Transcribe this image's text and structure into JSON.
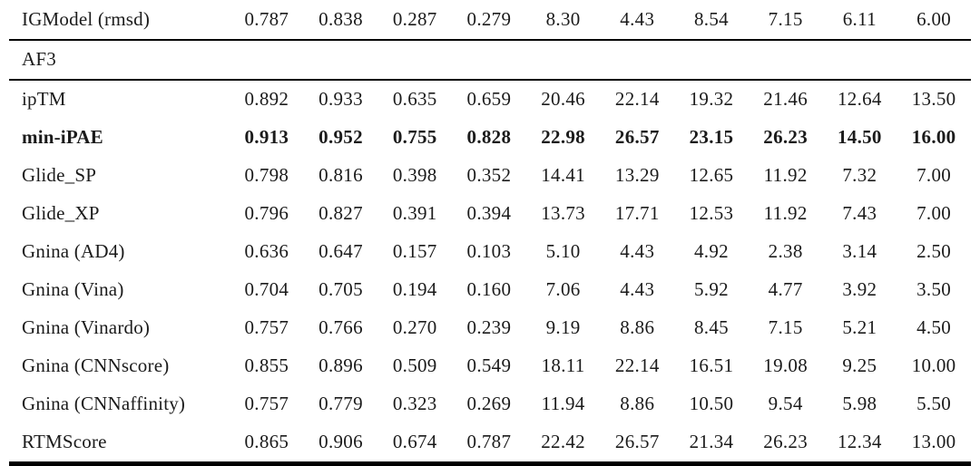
{
  "table": {
    "description_colors": {
      "text": "#1b1b1b",
      "rule": "#000000",
      "background": "#ffffff"
    },
    "rows": [
      {
        "type": "data",
        "label": "IGModel (rmsd)",
        "bold": false,
        "rule_below": "medium",
        "values": [
          "0.787",
          "0.838",
          "0.287",
          "0.279",
          "8.30",
          "4.43",
          "8.54",
          "7.15",
          "6.11",
          "6.00"
        ]
      },
      {
        "type": "section",
        "label": "AF3",
        "rule_below": "thin"
      },
      {
        "type": "data",
        "label": "ipTM",
        "bold": false,
        "values": [
          "0.892",
          "0.933",
          "0.635",
          "0.659",
          "20.46",
          "22.14",
          "19.32",
          "21.46",
          "12.64",
          "13.50"
        ]
      },
      {
        "type": "data",
        "label": "min-iPAE",
        "bold": true,
        "values": [
          "0.913",
          "0.952",
          "0.755",
          "0.828",
          "22.98",
          "26.57",
          "23.15",
          "26.23",
          "14.50",
          "16.00"
        ]
      },
      {
        "type": "data",
        "label": "Glide_SP",
        "bold": false,
        "values": [
          "0.798",
          "0.816",
          "0.398",
          "0.352",
          "14.41",
          "13.29",
          "12.65",
          "11.92",
          "7.32",
          "7.00"
        ]
      },
      {
        "type": "data",
        "label": "Glide_XP",
        "bold": false,
        "values": [
          "0.796",
          "0.827",
          "0.391",
          "0.394",
          "13.73",
          "17.71",
          "12.53",
          "11.92",
          "7.43",
          "7.00"
        ]
      },
      {
        "type": "data",
        "label": "Gnina (AD4)",
        "bold": false,
        "values": [
          "0.636",
          "0.647",
          "0.157",
          "0.103",
          "5.10",
          "4.43",
          "4.92",
          "2.38",
          "3.14",
          "2.50"
        ]
      },
      {
        "type": "data",
        "label": "Gnina (Vina)",
        "bold": false,
        "values": [
          "0.704",
          "0.705",
          "0.194",
          "0.160",
          "7.06",
          "4.43",
          "5.92",
          "4.77",
          "3.92",
          "3.50"
        ]
      },
      {
        "type": "data",
        "label": "Gnina (Vinardo)",
        "bold": false,
        "values": [
          "0.757",
          "0.766",
          "0.270",
          "0.239",
          "9.19",
          "8.86",
          "8.45",
          "7.15",
          "5.21",
          "4.50"
        ]
      },
      {
        "type": "data",
        "label": "Gnina (CNNscore)",
        "bold": false,
        "values": [
          "0.855",
          "0.896",
          "0.509",
          "0.549",
          "18.11",
          "22.14",
          "16.51",
          "19.08",
          "9.25",
          "10.00"
        ]
      },
      {
        "type": "data",
        "label": "Gnina (CNNaffinity)",
        "bold": false,
        "values": [
          "0.757",
          "0.779",
          "0.323",
          "0.269",
          "11.94",
          "8.86",
          "10.50",
          "9.54",
          "5.98",
          "5.50"
        ]
      },
      {
        "type": "data",
        "label": "RTMScore",
        "bold": false,
        "rule_below": "thick",
        "values": [
          "0.865",
          "0.906",
          "0.674",
          "0.787",
          "22.42",
          "26.57",
          "21.34",
          "26.23",
          "12.34",
          "13.00"
        ]
      }
    ]
  }
}
